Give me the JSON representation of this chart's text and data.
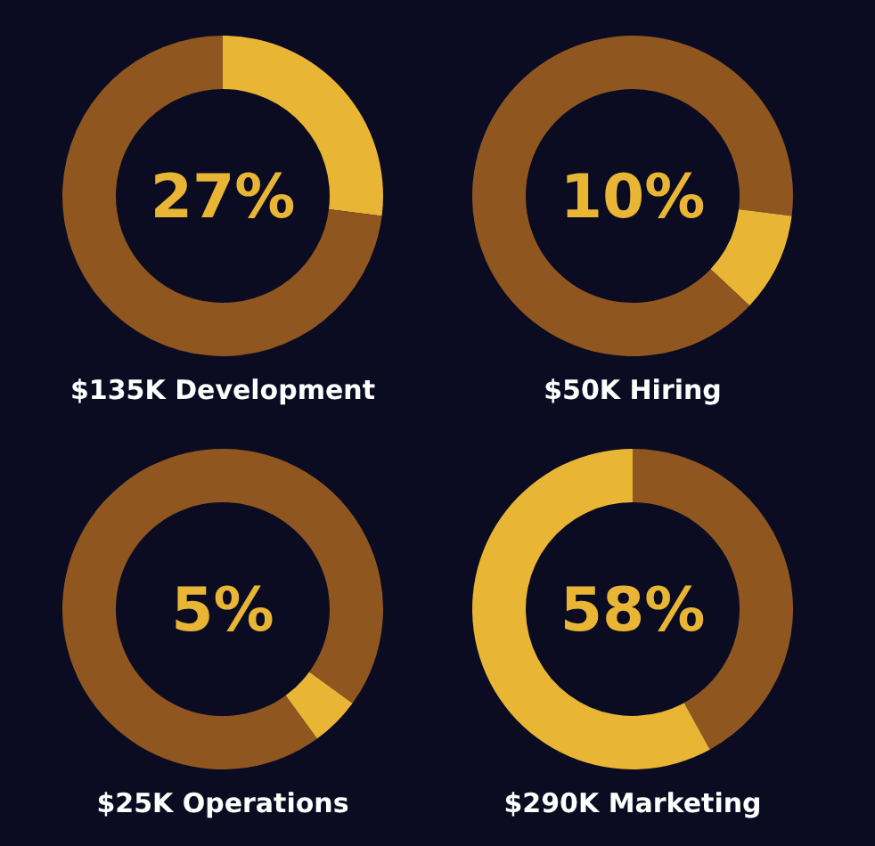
{
  "chart_data": [
    {
      "type": "donut",
      "title": "$135K Development",
      "categories": [
        null,
        null
      ],
      "values": [
        27,
        73
      ],
      "colors": [
        "#e8b535",
        "#8f5620"
      ],
      "annotations": [
        "27%"
      ]
    },
    {
      "type": "donut",
      "title": "$50K Hiring",
      "categories": [
        null,
        null,
        null
      ],
      "values": [
        27,
        10,
        63
      ],
      "colors": [
        "#8f5620",
        "#e8b535",
        "#8f5620"
      ],
      "annotations": [
        "10%"
      ]
    },
    {
      "type": "donut",
      "title": "$25K Operations",
      "categories": [
        null,
        null,
        null
      ],
      "values": [
        35,
        5,
        60
      ],
      "colors": [
        "#8f5620",
        "#e8b535",
        "#8f5620"
      ],
      "annotations": [
        "5%"
      ]
    },
    {
      "type": "donut",
      "title": "$290K Marketing",
      "categories": [
        null,
        null
      ],
      "values": [
        42,
        58
      ],
      "colors": [
        "#8f5620",
        "#e8b535"
      ],
      "annotations": [
        "58%"
      ]
    }
  ]
}
